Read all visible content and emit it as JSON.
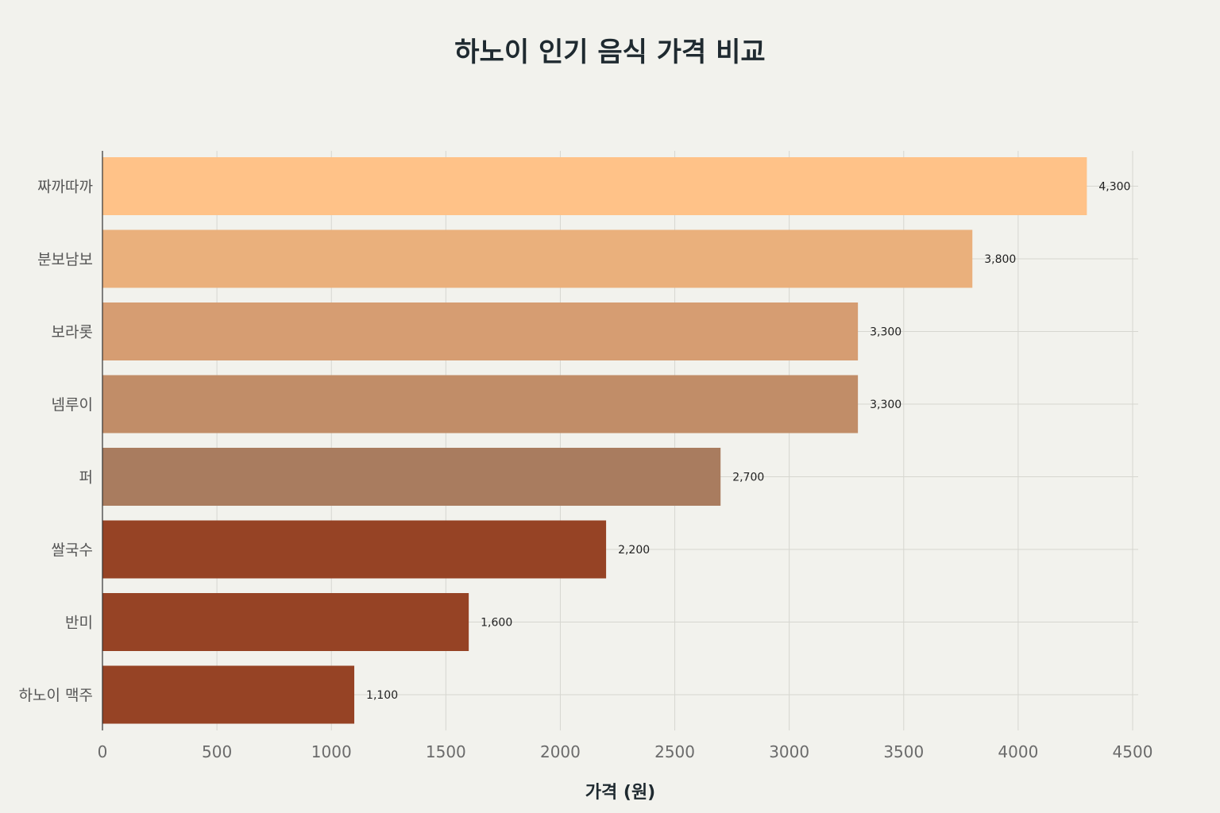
{
  "chart_data": {
    "type": "bar",
    "orientation": "horizontal",
    "title": "하노이 인기 음식 가격 비교",
    "xlabel": "가격 (원)",
    "ylabel": "",
    "xlim": [
      0,
      4500
    ],
    "x_ticks": [
      0,
      500,
      1000,
      1500,
      2000,
      2500,
      3000,
      3500,
      4000,
      4500
    ],
    "grid": true,
    "categories": [
      "짜까따까",
      "분보남보",
      "보라롯",
      "넴루이",
      "퍼",
      "쌀국수",
      "반미",
      "하노이 맥주"
    ],
    "values": [
      4300,
      3800,
      3300,
      3300,
      2700,
      2200,
      1600,
      1100
    ],
    "value_labels": [
      "4,300",
      "3,800",
      "3,300",
      "3,300",
      "2,700",
      "2,200",
      "1,600",
      "1,100"
    ],
    "colors": [
      "#ffc288",
      "#eab07c",
      "#d69d72",
      "#c18d68",
      "#a97c5f",
      "#964325",
      "#964325",
      "#964325"
    ]
  },
  "colors": {
    "background": "#f2f2ed",
    "grid": "#d6d6d0",
    "axis": "#333333"
  }
}
